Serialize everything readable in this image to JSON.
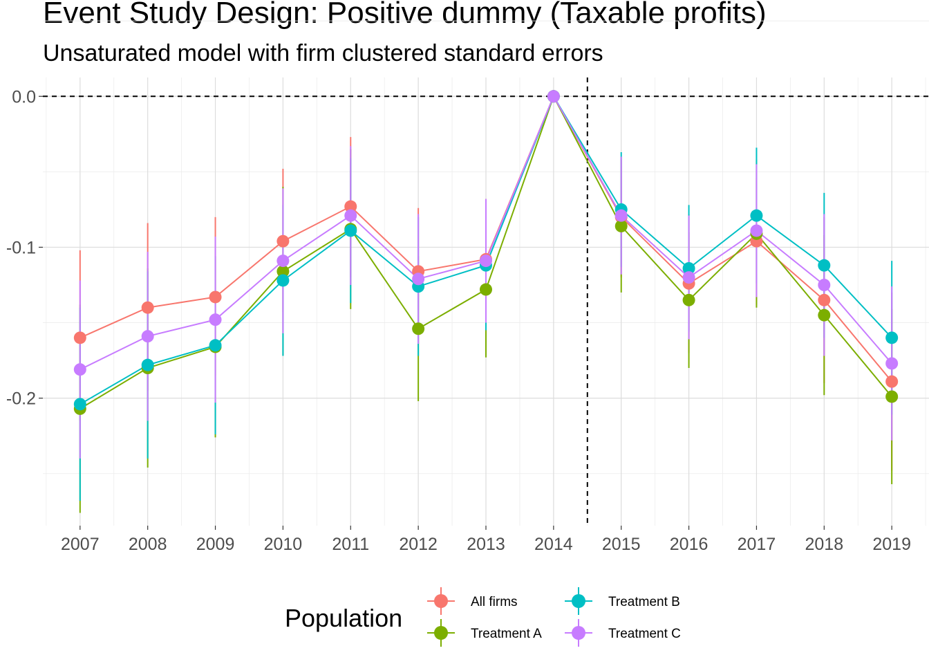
{
  "chart_data": {
    "type": "line",
    "title": "Event Study Design: Positive dummy (Taxable profits)",
    "subtitle": "Unsaturated model with firm clustered standard errors",
    "xlabel": "",
    "ylabel": "",
    "x": [
      2007,
      2008,
      2009,
      2010,
      2011,
      2012,
      2013,
      2014,
      2015,
      2016,
      2017,
      2018,
      2019
    ],
    "ylim": [
      -0.2845,
      0.0125
    ],
    "xlim": [
      2006.45,
      2019.55
    ],
    "yticks": [
      0.0,
      -0.1,
      -0.2
    ],
    "ytick_labels": [
      "0.0",
      "-0.1",
      "-0.2"
    ],
    "xtick_labels": [
      "2007",
      "2008",
      "2009",
      "2010",
      "2011",
      "2012",
      "2013",
      "2014",
      "2015",
      "2016",
      "2017",
      "2018",
      "2019"
    ],
    "hline": 0.0,
    "vline": 2014.5,
    "grid": true,
    "legend": {
      "title": "Population",
      "position": "bottom"
    },
    "series": [
      {
        "name": "All firms",
        "color": "#F8766D",
        "values": [
          -0.16,
          -0.14,
          -0.133,
          -0.096,
          -0.073,
          -0.116,
          -0.108,
          0.0,
          -0.08,
          -0.124,
          -0.096,
          -0.135,
          -0.189
        ],
        "ci_lower": [
          -0.215,
          -0.195,
          -0.185,
          -0.143,
          -0.12,
          -0.157,
          -0.148,
          0.0,
          -0.12,
          -0.17,
          -0.138,
          -0.19,
          -0.248
        ],
        "ci_upper": [
          -0.102,
          -0.084,
          -0.08,
          -0.048,
          -0.027,
          -0.074,
          -0.068,
          0.0,
          -0.04,
          -0.078,
          -0.054,
          -0.08,
          -0.13
        ]
      },
      {
        "name": "Treatment A",
        "color": "#7CAE00",
        "values": [
          -0.207,
          -0.18,
          -0.166,
          -0.116,
          -0.088,
          -0.154,
          -0.128,
          0.0,
          -0.086,
          -0.135,
          -0.091,
          -0.145,
          -0.199
        ],
        "ci_lower": [
          -0.276,
          -0.246,
          -0.226,
          -0.172,
          -0.141,
          -0.202,
          -0.173,
          0.0,
          -0.13,
          -0.18,
          -0.14,
          -0.198,
          -0.257
        ],
        "ci_upper": [
          -0.138,
          -0.114,
          -0.106,
          -0.06,
          -0.035,
          -0.106,
          -0.083,
          0.0,
          -0.042,
          -0.09,
          -0.042,
          -0.092,
          -0.141
        ]
      },
      {
        "name": "Treatment B",
        "color": "#00BFC4",
        "values": [
          -0.204,
          -0.178,
          -0.165,
          -0.122,
          -0.089,
          -0.126,
          -0.112,
          0.0,
          -0.075,
          -0.114,
          -0.079,
          -0.112,
          -0.16
        ],
        "ci_lower": [
          -0.268,
          -0.24,
          -0.224,
          -0.172,
          -0.137,
          -0.172,
          -0.155,
          0.0,
          -0.113,
          -0.156,
          -0.124,
          -0.16,
          -0.211
        ],
        "ci_upper": [
          -0.14,
          -0.116,
          -0.106,
          -0.072,
          -0.041,
          -0.08,
          -0.069,
          0.0,
          -0.037,
          -0.072,
          -0.034,
          -0.064,
          -0.109
        ]
      },
      {
        "name": "Treatment C",
        "color": "#C77CFF",
        "values": [
          -0.181,
          -0.159,
          -0.148,
          -0.109,
          -0.079,
          -0.121,
          -0.109,
          0.0,
          -0.079,
          -0.12,
          -0.089,
          -0.125,
          -0.177
        ],
        "ci_lower": [
          -0.24,
          -0.215,
          -0.203,
          -0.157,
          -0.125,
          -0.164,
          -0.15,
          0.0,
          -0.118,
          -0.161,
          -0.133,
          -0.172,
          -0.228
        ],
        "ci_upper": [
          -0.122,
          -0.103,
          -0.093,
          -0.061,
          -0.033,
          -0.078,
          -0.068,
          0.0,
          -0.04,
          -0.079,
          -0.045,
          -0.078,
          -0.126
        ]
      }
    ]
  }
}
